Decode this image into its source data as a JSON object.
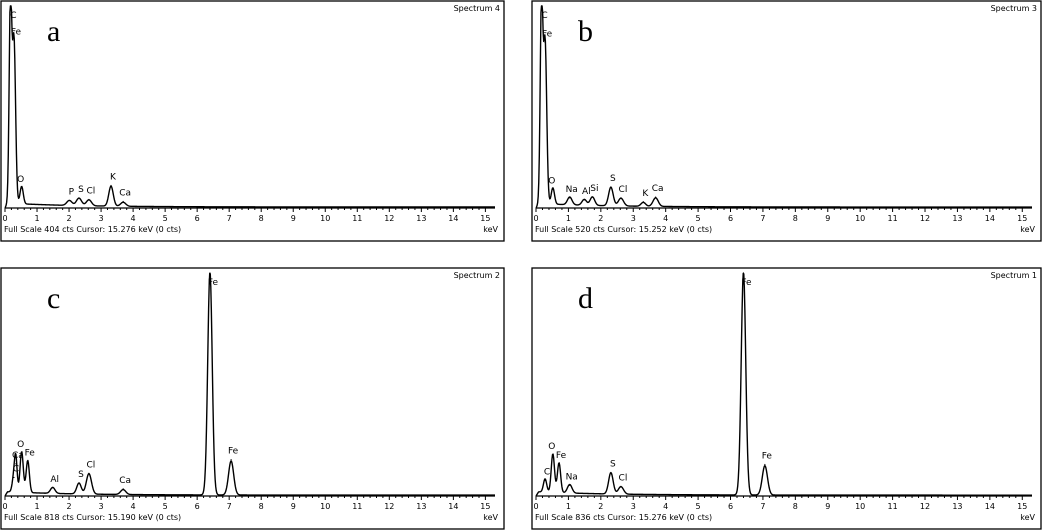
{
  "chart_data": [
    {
      "type": "line",
      "panel_letter": "a",
      "spectrum_title": "Spectrum 4",
      "footer": "Full Scale 404 cts  Cursor: 15.276 keV (0 cts)",
      "xlabel": "keV",
      "xlim": [
        0,
        15.3
      ],
      "ylim": [
        0,
        404
      ],
      "x_ticks": [
        "0",
        "1",
        "2",
        "3",
        "4",
        "5",
        "6",
        "7",
        "8",
        "9",
        "10",
        "11",
        "12",
        "13",
        "14",
        "15"
      ],
      "background": 5,
      "peaks": [
        {
          "x": 0.17,
          "height": 404,
          "width": 0.04,
          "label": "C"
        },
        {
          "x": 0.28,
          "height": 330,
          "width": 0.05,
          "label": "Fe"
        },
        {
          "x": 0.52,
          "height": 35,
          "width": 0.05,
          "label": "O"
        },
        {
          "x": 2.01,
          "height": 10,
          "width": 0.08,
          "label": "P"
        },
        {
          "x": 2.31,
          "height": 15,
          "width": 0.08,
          "label": "S"
        },
        {
          "x": 2.62,
          "height": 12,
          "width": 0.08,
          "label": "Cl"
        },
        {
          "x": 3.31,
          "height": 40,
          "width": 0.07,
          "label": "K"
        },
        {
          "x": 3.69,
          "height": 8,
          "width": 0.08,
          "label": "Ca"
        }
      ]
    },
    {
      "type": "line",
      "panel_letter": "b",
      "spectrum_title": "Spectrum 3",
      "footer": "Full Scale 520 cts  Cursor: 15.252 keV (0 cts)",
      "xlabel": "keV",
      "xlim": [
        0,
        15.3
      ],
      "ylim": [
        0,
        520
      ],
      "x_ticks": [
        "0",
        "1",
        "2",
        "3",
        "4",
        "5",
        "6",
        "7",
        "8",
        "9",
        "10",
        "11",
        "12",
        "13",
        "14",
        "15"
      ],
      "background": 6,
      "peaks": [
        {
          "x": 0.17,
          "height": 520,
          "width": 0.04,
          "label": "C"
        },
        {
          "x": 0.28,
          "height": 420,
          "width": 0.05,
          "label": "Fe"
        },
        {
          "x": 0.52,
          "height": 42,
          "width": 0.05,
          "label": "O"
        },
        {
          "x": 1.04,
          "height": 20,
          "width": 0.07,
          "label": "Na"
        },
        {
          "x": 1.49,
          "height": 15,
          "width": 0.07,
          "label": "Al"
        },
        {
          "x": 1.74,
          "height": 22,
          "width": 0.07,
          "label": "Si"
        },
        {
          "x": 2.31,
          "height": 48,
          "width": 0.07,
          "label": "S"
        },
        {
          "x": 2.62,
          "height": 20,
          "width": 0.08,
          "label": "Cl"
        },
        {
          "x": 3.31,
          "height": 10,
          "width": 0.07,
          "label": "K"
        },
        {
          "x": 3.69,
          "height": 22,
          "width": 0.08,
          "label": "Ca"
        }
      ]
    },
    {
      "type": "line",
      "panel_letter": "c",
      "spectrum_title": "Spectrum 2",
      "footer": "Full Scale 818 cts  Cursor: 15.190 keV (0 cts)",
      "xlabel": "keV",
      "xlim": [
        0,
        15.3
      ],
      "ylim": [
        0,
        818
      ],
      "x_ticks": [
        "0",
        "1",
        "2",
        "3",
        "4",
        "5",
        "6",
        "7",
        "8",
        "9",
        "10",
        "11",
        "12",
        "13",
        "14",
        "15"
      ],
      "background": 8,
      "peaks": [
        {
          "x": 0.28,
          "height": 60,
          "width": 0.05,
          "label": "C"
        },
        {
          "x": 0.34,
          "height": 110,
          "width": 0.04,
          "label": "Ca"
        },
        {
          "x": 0.52,
          "height": 150,
          "width": 0.05,
          "label": "O"
        },
        {
          "x": 0.71,
          "height": 118,
          "width": 0.05,
          "label": "Fe"
        },
        {
          "x": 1.49,
          "height": 22,
          "width": 0.07,
          "label": "Al"
        },
        {
          "x": 2.31,
          "height": 40,
          "width": 0.07,
          "label": "S"
        },
        {
          "x": 2.62,
          "height": 75,
          "width": 0.08,
          "label": "Cl"
        },
        {
          "x": 3.69,
          "height": 18,
          "width": 0.08,
          "label": "Ca"
        },
        {
          "x": 6.4,
          "height": 818,
          "width": 0.07,
          "label": "Fe"
        },
        {
          "x": 7.06,
          "height": 125,
          "width": 0.08,
          "label": "Fe"
        }
      ]
    },
    {
      "type": "line",
      "panel_letter": "d",
      "spectrum_title": "Spectrum 1",
      "footer": "Full Scale 836 cts  Cursor: 15.276 keV (0 cts)",
      "xlabel": "keV",
      "xlim": [
        0,
        15.3
      ],
      "ylim": [
        0,
        836
      ],
      "x_ticks": [
        "0",
        "1",
        "2",
        "3",
        "4",
        "5",
        "6",
        "7",
        "8",
        "9",
        "10",
        "11",
        "12",
        "13",
        "14",
        "15"
      ],
      "background": 8,
      "peaks": [
        {
          "x": 0.28,
          "height": 50,
          "width": 0.05,
          "label": "C"
        },
        {
          "x": 0.52,
          "height": 145,
          "width": 0.05,
          "label": "O"
        },
        {
          "x": 0.71,
          "height": 112,
          "width": 0.05,
          "label": "Fe"
        },
        {
          "x": 1.04,
          "height": 32,
          "width": 0.07,
          "label": "Na"
        },
        {
          "x": 2.31,
          "height": 80,
          "width": 0.07,
          "label": "S"
        },
        {
          "x": 2.62,
          "height": 28,
          "width": 0.08,
          "label": "Cl"
        },
        {
          "x": 6.4,
          "height": 836,
          "width": 0.07,
          "label": "Fe"
        },
        {
          "x": 7.06,
          "height": 110,
          "width": 0.08,
          "label": "Fe"
        }
      ]
    }
  ]
}
